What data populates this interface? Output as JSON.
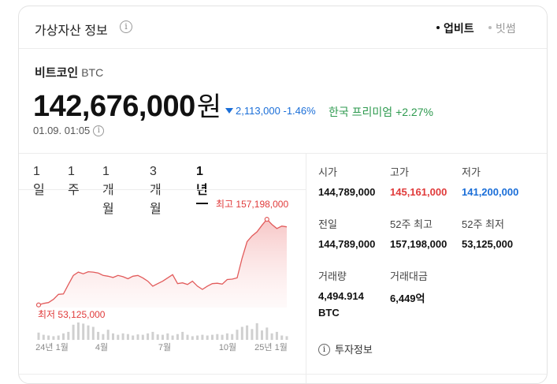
{
  "header": {
    "title": "가상자산 정보",
    "info_icon": "i",
    "exchanges": [
      {
        "label": "업비트",
        "active": true
      },
      {
        "label": "빗썸",
        "active": false
      }
    ]
  },
  "coin": {
    "name": "비트코인",
    "symbol": "BTC",
    "price": "142,676,000",
    "unit": "원",
    "change_amount": "2,113,000",
    "change_pct": "-1.46%",
    "premium_label": "한국 프리미엄",
    "premium_value": "+2.27%",
    "timestamp": "01.09. 01:05"
  },
  "tabs": [
    "1일",
    "1주",
    "1개월",
    "3개월",
    "1년"
  ],
  "active_tab": "1년",
  "stats": [
    {
      "label": "시가",
      "value": "144,789,000",
      "tone": "normal"
    },
    {
      "label": "고가",
      "value": "145,161,000",
      "tone": "up"
    },
    {
      "label": "저가",
      "value": "141,200,000",
      "tone": "down"
    },
    {
      "label": "전일",
      "value": "144,789,000",
      "tone": "normal"
    },
    {
      "label": "52주 최고",
      "value": "157,198,000",
      "tone": "normal"
    },
    {
      "label": "52주 최저",
      "value": "53,125,000",
      "tone": "normal"
    },
    {
      "label": "거래량",
      "value": "4,494.914",
      "value2": "BTC",
      "tone": "normal"
    },
    {
      "label": "거래대금",
      "value": "6,449억",
      "tone": "normal"
    }
  ],
  "invest_info": "투자정보",
  "colors": {
    "up": "#e03b3b",
    "down": "#1a6ed8",
    "premium": "#2e9a4f",
    "line": "#e25b5b"
  },
  "chart_data": {
    "type": "area",
    "x_ticks": [
      "24년 1월",
      "4월",
      "7월",
      "10월",
      "25년 1월"
    ],
    "max_label": "최고 157,198,000",
    "min_label": "최저 53,125,000",
    "ylim": [
      50000000,
      165000000
    ],
    "values": [
      53125000,
      55000000,
      56000000,
      60000000,
      66000000,
      66500000,
      78000000,
      89000000,
      93000000,
      91000000,
      93500000,
      93000000,
      92000000,
      89000000,
      88000000,
      86500000,
      89000000,
      87500000,
      85000000,
      88000000,
      89000000,
      86000000,
      82000000,
      76000000,
      79000000,
      82000000,
      86000000,
      90000000,
      79000000,
      80000000,
      78000000,
      82000000,
      76000000,
      72000000,
      76000000,
      79000000,
      79500000,
      78500000,
      84000000,
      84500000,
      86000000,
      110000000,
      130000000,
      137000000,
      142000000,
      150000000,
      157198000,
      151000000,
      146000000,
      149000000,
      148000000
    ],
    "volume": [
      20,
      14,
      12,
      10,
      12,
      18,
      22,
      42,
      48,
      45,
      40,
      36,
      22,
      16,
      28,
      18,
      14,
      18,
      16,
      12,
      15,
      14,
      18,
      22,
      15,
      14,
      18,
      12,
      16,
      22,
      14,
      10,
      12,
      14,
      12,
      14,
      16,
      14,
      18,
      16,
      28,
      36,
      40,
      30,
      46,
      26,
      34,
      18,
      22,
      12,
      10
    ]
  }
}
